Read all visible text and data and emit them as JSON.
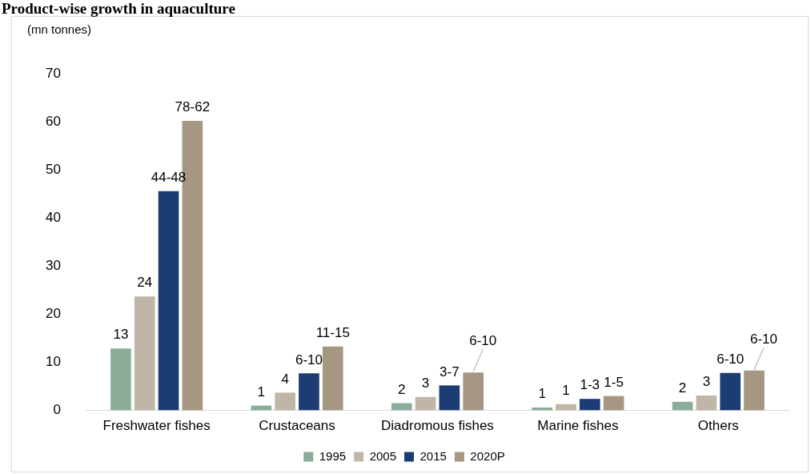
{
  "chart_data": {
    "type": "bar",
    "title": "Product-wise growth in aquaculture",
    "ylabel": "(mn tonnes)",
    "categories": [
      "Freshwater fishes",
      "Crustaceans",
      "Diadromous fishes",
      "Marine fishes",
      "Others"
    ],
    "series": [
      {
        "name": "1995",
        "color": "#8aac98",
        "values": [
          12.9,
          1.0,
          1.5,
          0.6,
          1.8
        ],
        "value_labels": [
          "13",
          "1",
          "2",
          "1",
          "2"
        ]
      },
      {
        "name": "2005",
        "color": "#bfb6a8",
        "values": [
          23.7,
          3.7,
          2.8,
          1.3,
          3.1
        ],
        "value_labels": [
          "24",
          "4",
          "3",
          "1",
          "3"
        ]
      },
      {
        "name": "2015",
        "color": "#1c3c74",
        "values": [
          45.6,
          7.7,
          5.2,
          2.4,
          7.8
        ],
        "value_labels": [
          "44-48",
          "6-10",
          "3-7",
          "1-3",
          "6-10"
        ]
      },
      {
        "name": "2020P",
        "color": "#a69783",
        "values": [
          60.2,
          13.3,
          7.9,
          3.0,
          8.3
        ],
        "value_labels": [
          "78-62",
          "11-15",
          "6-10",
          "1-5",
          "6-10"
        ]
      }
    ],
    "ylim": [
      0,
      70
    ],
    "yticks": [
      0,
      10,
      20,
      30,
      40,
      50,
      60,
      70
    ],
    "grid": false,
    "legend": "bottom"
  }
}
